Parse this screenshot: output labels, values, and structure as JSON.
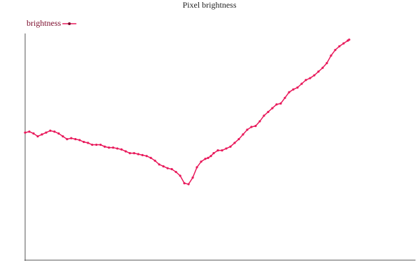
{
  "chart_data": {
    "type": "line",
    "title": "Pixel brightness",
    "x": [
      0,
      6,
      12,
      18,
      24,
      30,
      36,
      42,
      48,
      54,
      60,
      66,
      72,
      78,
      84,
      90,
      96,
      102,
      108,
      114,
      120,
      126,
      132,
      138,
      144,
      150,
      156,
      162,
      168,
      174,
      180,
      186,
      192,
      198,
      204,
      210,
      216,
      222,
      228,
      234,
      240,
      246,
      252,
      258,
      262,
      266,
      270,
      276,
      282,
      288,
      294,
      300,
      306,
      312,
      318,
      324,
      330,
      336,
      342,
      348,
      354,
      360,
      366,
      372,
      378,
      384,
      390,
      396,
      402,
      408,
      414,
      420,
      426,
      432,
      438,
      444,
      450,
      456,
      462,
      464
    ],
    "series": [
      {
        "name": "brightness",
        "color": "#e8185a",
        "values": [
          136,
          137,
          135,
          132,
          134,
          136,
          138,
          137,
          135,
          132,
          129,
          130,
          129,
          128,
          126,
          125,
          123,
          123,
          123,
          121,
          120,
          120,
          119,
          118,
          116,
          114,
          114,
          113,
          112,
          111,
          109,
          106,
          102,
          100,
          98,
          97,
          94,
          90,
          82,
          81,
          88,
          99,
          105,
          108,
          109,
          111,
          114,
          117,
          117,
          119,
          121,
          125,
          129,
          134,
          139,
          142,
          143,
          148,
          154,
          158,
          162,
          166,
          167,
          173,
          179,
          182,
          184,
          188,
          192,
          194,
          197,
          201,
          205,
          210,
          218,
          224,
          228,
          231,
          234,
          235
        ]
      }
    ],
    "xlim": [
      0,
      559
    ],
    "ylim": [
      0,
      255
    ],
    "legend": "top-left"
  }
}
